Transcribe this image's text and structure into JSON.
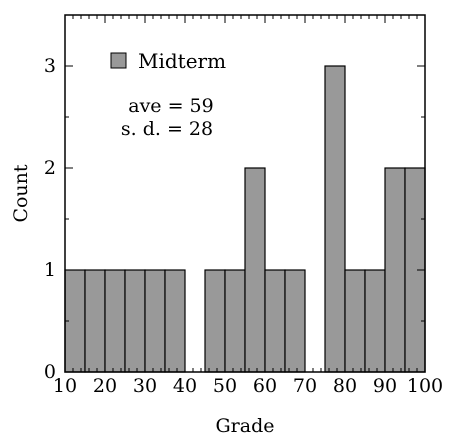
{
  "chart_data": {
    "type": "bar",
    "xlabel": "Grade",
    "ylabel": "Count",
    "xlim": [
      10,
      100
    ],
    "ylim": [
      0,
      3.5
    ],
    "xticks": [
      10,
      20,
      30,
      40,
      50,
      60,
      70,
      80,
      90,
      100
    ],
    "yticks": [
      0,
      1,
      2,
      3
    ],
    "bin_width": 5,
    "series": [
      {
        "name": "Midterm",
        "bins": [
          {
            "start": 10,
            "end": 15,
            "count": 1
          },
          {
            "start": 15,
            "end": 20,
            "count": 1
          },
          {
            "start": 20,
            "end": 25,
            "count": 1
          },
          {
            "start": 25,
            "end": 30,
            "count": 1
          },
          {
            "start": 30,
            "end": 35,
            "count": 1
          },
          {
            "start": 35,
            "end": 40,
            "count": 1
          },
          {
            "start": 40,
            "end": 45,
            "count": 0
          },
          {
            "start": 45,
            "end": 50,
            "count": 1
          },
          {
            "start": 50,
            "end": 55,
            "count": 1
          },
          {
            "start": 55,
            "end": 60,
            "count": 2
          },
          {
            "start": 60,
            "end": 65,
            "count": 1
          },
          {
            "start": 65,
            "end": 70,
            "count": 1
          },
          {
            "start": 70,
            "end": 75,
            "count": 0
          },
          {
            "start": 75,
            "end": 80,
            "count": 3
          },
          {
            "start": 80,
            "end": 85,
            "count": 1
          },
          {
            "start": 85,
            "end": 90,
            "count": 1
          },
          {
            "start": 90,
            "end": 95,
            "count": 2
          },
          {
            "start": 95,
            "end": 100,
            "count": 2
          }
        ]
      }
    ],
    "legend": {
      "label": "Midterm",
      "position": "top-left"
    },
    "annotations": [
      "ave = 59",
      "s. d. = 28"
    ],
    "grid": false
  },
  "colors": {
    "bar_fill": "#999999",
    "legend_text": "#1a1aa6",
    "axis": "#000000"
  }
}
